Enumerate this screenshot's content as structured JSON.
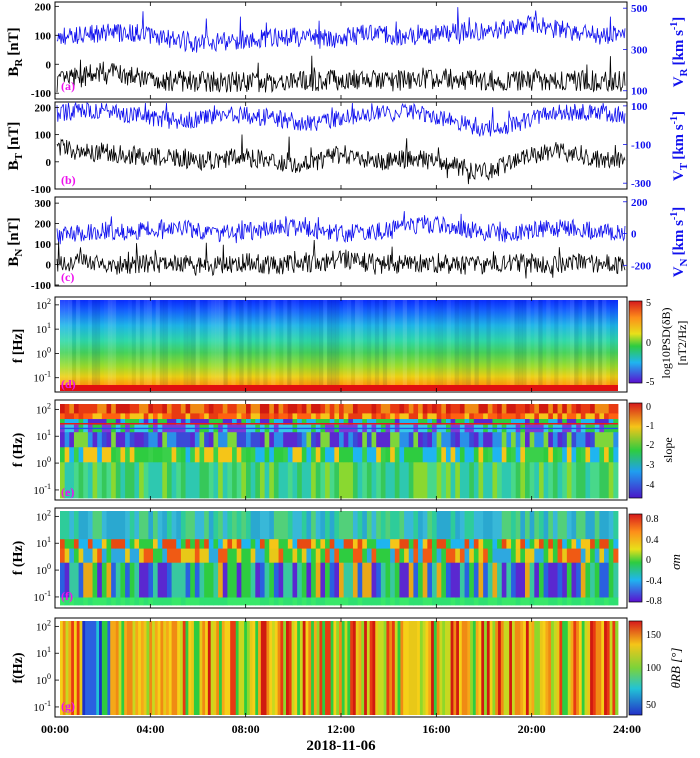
{
  "chart_data": {
    "type": "multi-panel time series and spectrograms",
    "date": "2018-11-06",
    "x_ticks": [
      "00:00",
      "04:00",
      "08:00",
      "12:00",
      "16:00",
      "20:00",
      "24:00"
    ],
    "x_range_hours": [
      0,
      24
    ],
    "colors": {
      "b_line": "#000000",
      "v_line": "#1010ee",
      "panel_label": "#ee11ee"
    },
    "panels": [
      {
        "label": "(a)",
        "kind": "timeseries",
        "left_axis": {
          "label": "B",
          "sub": "R",
          "unit": "[nT]",
          "ticks": [
            -100,
            0,
            100,
            200
          ],
          "range": [
            -120,
            215
          ]
        },
        "right_axis": {
          "label": "V",
          "sub": "R",
          "unit": "[km s",
          "sup": "-1",
          "close": "]",
          "ticks": [
            100,
            300,
            500
          ],
          "range": [
            60,
            530
          ]
        },
        "b_profile": [
          -60,
          -45,
          -25,
          -40,
          -55,
          -58,
          -60,
          -60,
          -62,
          -60,
          -60,
          -58,
          -55,
          -55,
          -57,
          -55,
          -50,
          -52,
          -55,
          -58,
          -55,
          -53,
          -55,
          -58,
          -60
        ],
        "v_profile": [
          360,
          375,
          380,
          385,
          370,
          345,
          330,
          340,
          350,
          355,
          360,
          350,
          355,
          375,
          370,
          360,
          375,
          390,
          380,
          400,
          420,
          400,
          380,
          370,
          365
        ]
      },
      {
        "label": "(b)",
        "kind": "timeseries",
        "left_axis": {
          "label": "B",
          "sub": "T",
          "unit": "[nT]",
          "ticks": [
            -100,
            0,
            100,
            200
          ],
          "range": [
            -100,
            220
          ]
        },
        "right_axis": {
          "label": "V",
          "sub": "T",
          "unit": "[km s",
          "sup": "-1",
          "close": "]",
          "ticks": [
            -300,
            -100,
            100
          ],
          "range": [
            -330,
            120
          ]
        },
        "b_profile": [
          60,
          30,
          40,
          25,
          20,
          10,
          0,
          10,
          20,
          5,
          -10,
          0,
          30,
          10,
          0,
          15,
          0,
          -20,
          -40,
          -10,
          20,
          40,
          30,
          10,
          0
        ],
        "v_profile": [
          60,
          80,
          75,
          60,
          40,
          20,
          30,
          60,
          50,
          40,
          20,
          10,
          40,
          50,
          60,
          70,
          40,
          10,
          -20,
          -10,
          30,
          60,
          70,
          60,
          50
        ]
      },
      {
        "label": "(c)",
        "kind": "timeseries",
        "left_axis": {
          "label": "B",
          "sub": "N",
          "unit": "[nT]",
          "ticks": [
            -100,
            0,
            100,
            200,
            300
          ],
          "range": [
            -105,
            330
          ]
        },
        "right_axis": {
          "label": "V",
          "sub": "N",
          "unit": "[km s",
          "sup": "-1",
          "close": "]",
          "ticks": [
            -200,
            0,
            200
          ],
          "range": [
            -330,
            230
          ]
        },
        "b_profile": [
          10,
          15,
          0,
          -5,
          5,
          10,
          -10,
          0,
          10,
          -5,
          5,
          10,
          30,
          10,
          0,
          5,
          10,
          -5,
          0,
          10,
          5,
          0,
          10,
          5,
          0
        ],
        "v_profile": [
          -20,
          0,
          20,
          10,
          30,
          50,
          20,
          0,
          10,
          30,
          40,
          20,
          0,
          10,
          20,
          40,
          60,
          30,
          10,
          0,
          20,
          40,
          30,
          10,
          0
        ]
      },
      {
        "label": "(d)",
        "kind": "spectrogram",
        "yaxis": "f [Hz]",
        "y_ticks": [
          "10-1",
          "100",
          "101",
          "102"
        ],
        "colorbar": {
          "title": "log10PSD(δB)",
          "units": "[nT2/Hz]",
          "ticks": [
            "5",
            "0",
            "-5"
          ],
          "range": [
            -5,
            5
          ]
        }
      },
      {
        "label": "(e)",
        "kind": "spectrogram",
        "yaxis": "f (Hz)",
        "y_ticks": [
          "10-1",
          "100",
          "101",
          "102"
        ],
        "colorbar": {
          "title": "slope",
          "ticks": [
            "0",
            "-1",
            "-2",
            "-3",
            "-4"
          ],
          "range": [
            -4.5,
            0.2
          ]
        }
      },
      {
        "label": "(f)",
        "kind": "spectrogram",
        "yaxis": "f (Hz)",
        "y_ticks": [
          "10-1",
          "100",
          "101",
          "102"
        ],
        "colorbar": {
          "title": "σm",
          "ticks": [
            "0.8",
            "0.4",
            "0",
            "-0.4",
            "-0.8"
          ],
          "range": [
            -0.8,
            0.8
          ]
        }
      },
      {
        "label": "(g)",
        "kind": "spectrogram",
        "yaxis": "f(Hz)",
        "y_ticks": [
          "10-1",
          "100",
          "101",
          "102"
        ],
        "colorbar": {
          "title": "θRB [°]",
          "ticks": [
            "150",
            "100",
            "50"
          ],
          "range": [
            40,
            180
          ]
        }
      }
    ]
  }
}
